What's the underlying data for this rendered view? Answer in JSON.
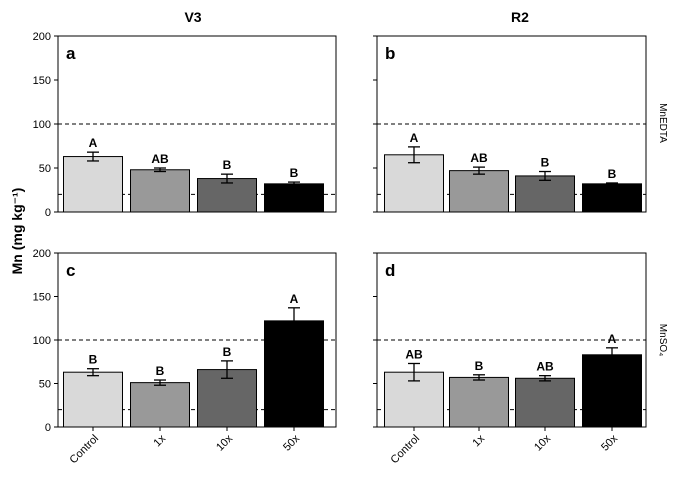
{
  "figure": {
    "ylabel": "Mn (mg kg⁻¹)",
    "col_titles": [
      "V3",
      "R2"
    ],
    "row_labels": [
      "MnEDTA",
      "MnSO₄"
    ]
  },
  "chart_data": [
    {
      "panel": "a",
      "type": "bar",
      "column": "V3",
      "row": "MnEDTA",
      "categories": [
        "Control",
        "1x",
        "10x",
        "50x"
      ],
      "values": [
        63,
        48,
        38,
        32
      ],
      "errors": [
        5,
        2,
        5,
        2
      ],
      "letters": [
        "A",
        "AB",
        "B",
        "B"
      ],
      "colors": [
        "#d9d9d9",
        "#999999",
        "#666666",
        "#000000"
      ],
      "ylim": [
        0,
        200
      ],
      "yticks": [
        0,
        50,
        100,
        150,
        200
      ],
      "reference_lines": [
        100,
        20
      ],
      "grid": false
    },
    {
      "panel": "b",
      "type": "bar",
      "column": "R2",
      "row": "MnEDTA",
      "categories": [
        "Control",
        "1x",
        "10x",
        "50x"
      ],
      "values": [
        65,
        47,
        41,
        32
      ],
      "errors": [
        9,
        4,
        5,
        1
      ],
      "letters": [
        "A",
        "AB",
        "B",
        "B"
      ],
      "colors": [
        "#d9d9d9",
        "#999999",
        "#666666",
        "#000000"
      ],
      "ylim": [
        0,
        200
      ],
      "yticks": [
        0,
        50,
        100,
        150,
        200
      ],
      "reference_lines": [
        100,
        20
      ],
      "grid": false
    },
    {
      "panel": "c",
      "type": "bar",
      "column": "V3",
      "row": "MnSO₄",
      "categories": [
        "Control",
        "1x",
        "10x",
        "50x"
      ],
      "values": [
        63,
        51,
        66,
        122
      ],
      "errors": [
        4,
        3,
        10,
        15
      ],
      "letters": [
        "B",
        "B",
        "B",
        "A"
      ],
      "colors": [
        "#d9d9d9",
        "#999999",
        "#666666",
        "#000000"
      ],
      "ylim": [
        0,
        200
      ],
      "yticks": [
        0,
        50,
        100,
        150,
        200
      ],
      "reference_lines": [
        100,
        20
      ],
      "grid": false
    },
    {
      "panel": "d",
      "type": "bar",
      "column": "R2",
      "row": "MnSO₄",
      "categories": [
        "Control",
        "1x",
        "10x",
        "50x"
      ],
      "values": [
        63,
        57,
        56,
        83
      ],
      "errors": [
        10,
        3,
        3,
        8
      ],
      "letters": [
        "AB",
        "B",
        "AB",
        "A"
      ],
      "colors": [
        "#d9d9d9",
        "#999999",
        "#666666",
        "#000000"
      ],
      "ylim": [
        0,
        200
      ],
      "yticks": [
        0,
        50,
        100,
        150,
        200
      ],
      "reference_lines": [
        100,
        20
      ],
      "grid": false
    }
  ]
}
